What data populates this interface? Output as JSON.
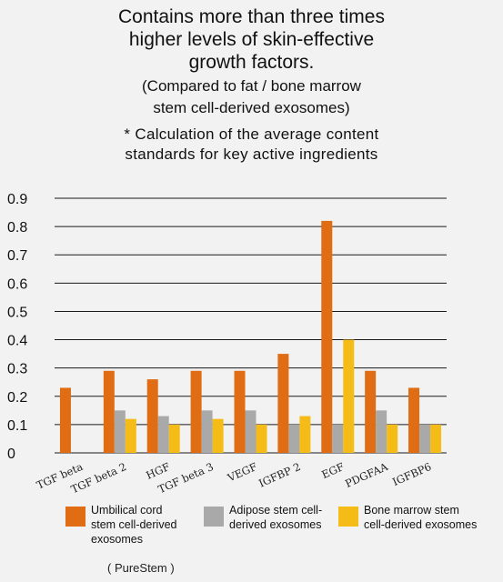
{
  "header": {
    "title": "Contains more than three times\nhigher levels of skin-effective\ngrowth factors.",
    "subtitle": "(Compared to fat / bone marrow\nstem cell-derived exosomes)",
    "note": "* Calculation of the average content\nstandards for key active ingredients"
  },
  "chart_data": {
    "type": "bar",
    "categories": [
      "TGF beta",
      "TGF beta 2",
      "HGF",
      "TGF beta 3",
      "VEGF",
      "IGFBP 2",
      "EGF",
      "PDGFAA",
      "IGFBP6"
    ],
    "series": [
      {
        "name": "Umbilical cord\nstem cell-derived\nexosomes",
        "color": "#e06c14",
        "values": [
          0.23,
          0.29,
          0.26,
          0.29,
          0.29,
          0.35,
          0.82,
          0.29,
          0.23
        ]
      },
      {
        "name": "Adipose stem cell-\nderived exosomes",
        "color": "#a9a9a9",
        "values": [
          0,
          0.15,
          0.13,
          0.15,
          0.15,
          0.1,
          0.1,
          0.15,
          0.1
        ]
      },
      {
        "name": "Bone marrow stem\ncell-derived exosomes",
        "color": "#f5bc17",
        "values": [
          0,
          0.12,
          0.1,
          0.12,
          0.1,
          0.13,
          0.4,
          0.1,
          0.1
        ]
      }
    ],
    "yticks": [
      "0",
      "0.1",
      "0.2",
      "0.3",
      "0.4",
      "0.5",
      "0.6",
      "0.7",
      "0.8",
      "0.9"
    ],
    "ylim": [
      0,
      0.9
    ],
    "grid": true,
    "legend_position": "bottom"
  },
  "source": "( PureStem )"
}
